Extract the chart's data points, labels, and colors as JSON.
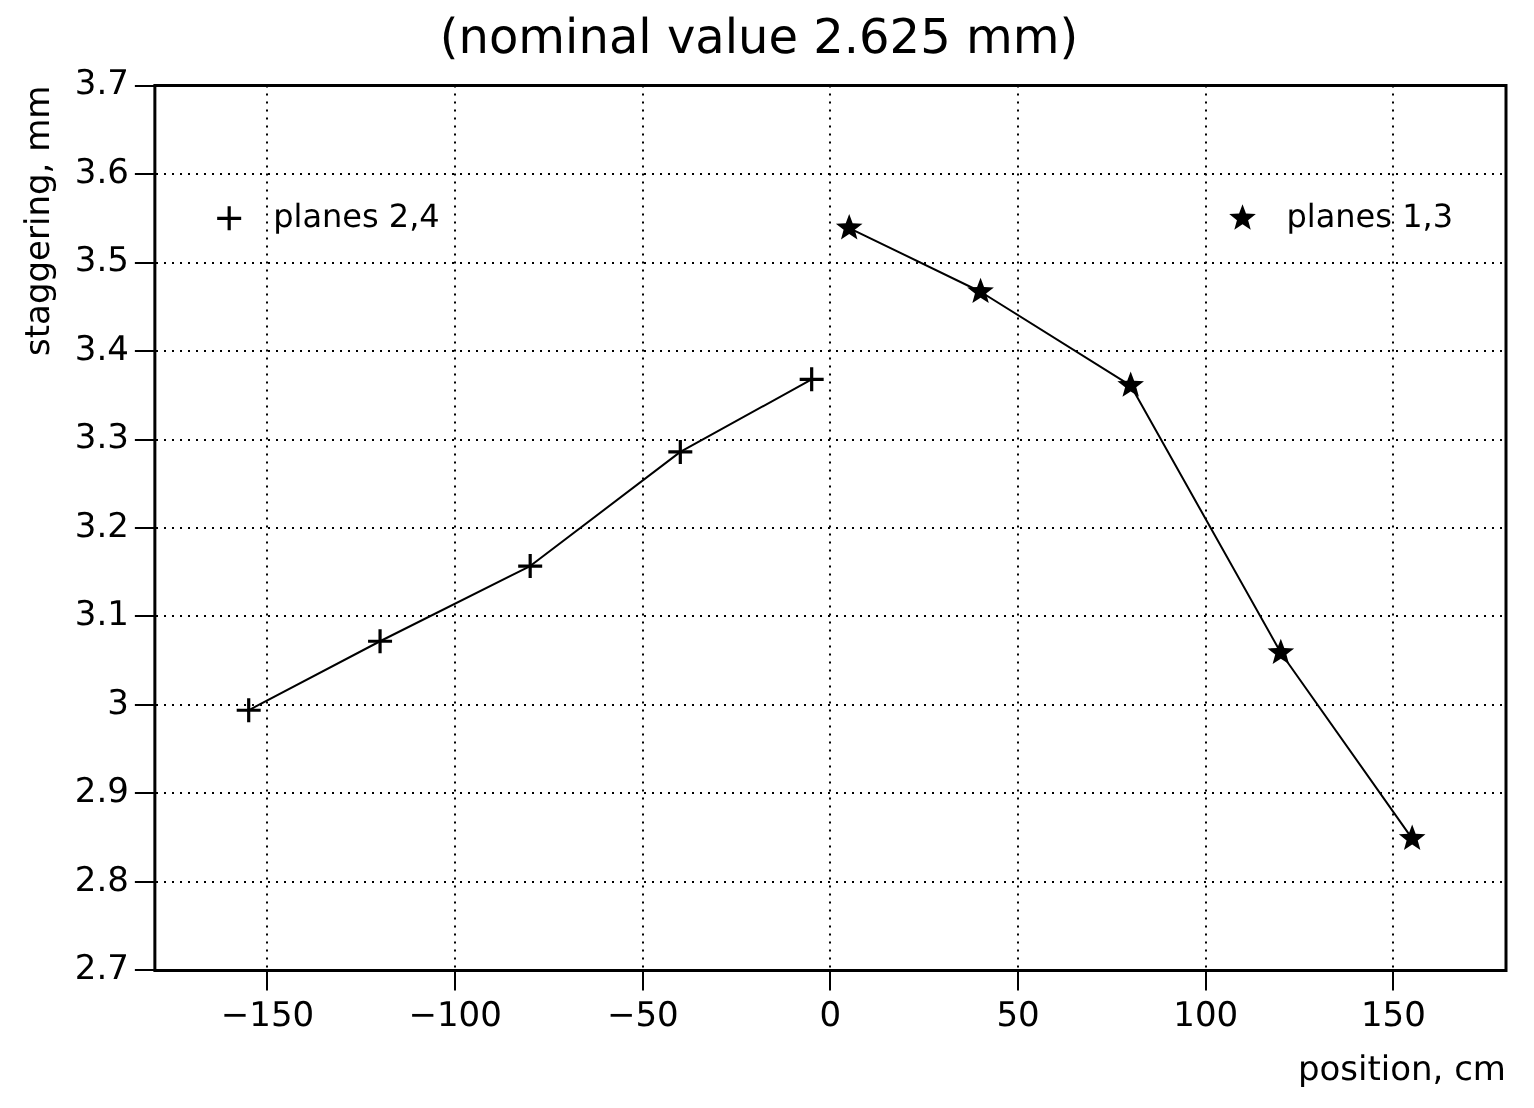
{
  "chart_data": {
    "type": "line",
    "title": "(nominal value 2.625 mm)",
    "xlabel": "position, cm",
    "ylabel": "staggering, mm",
    "xlim": [
      -180,
      180
    ],
    "xticks": [
      -150,
      -100,
      -50,
      0,
      50,
      100,
      150
    ],
    "ylim": [
      2.7,
      3.7
    ],
    "yticks": [
      2.7,
      2.8,
      2.9,
      3,
      3.1,
      3.2,
      3.3,
      3.4,
      3.5,
      3.6,
      3.7
    ],
    "grid": true,
    "legend": "top",
    "line_style": "solid",
    "series": [
      {
        "name": "planes 2,4",
        "color": "#000000",
        "marker": "cross",
        "x": [
          -155,
          -120,
          -80,
          -40,
          -5
        ],
        "values": [
          2.994,
          3.072,
          3.157,
          3.286,
          3.368
        ]
      },
      {
        "name": "planes 1,3",
        "color": "#000000",
        "marker": "star",
        "x": [
          5,
          40,
          80,
          120,
          155
        ],
        "values": [
          3.539,
          3.467,
          3.361,
          3.059,
          2.849
        ]
      }
    ]
  }
}
